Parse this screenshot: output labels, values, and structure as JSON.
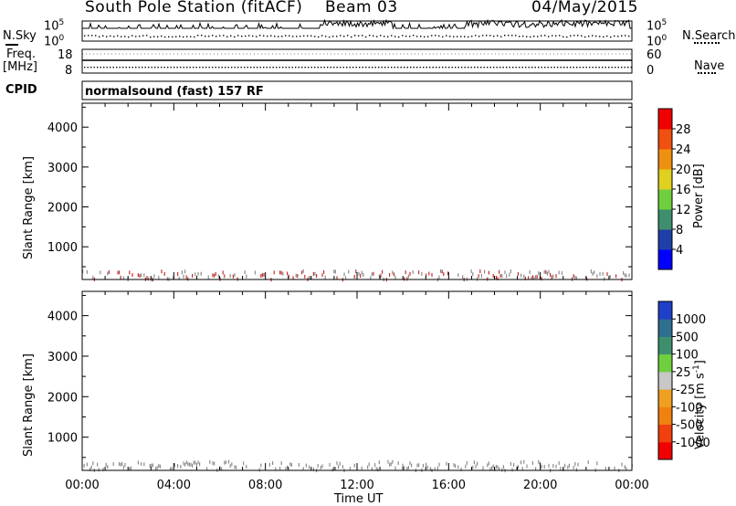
{
  "header": {
    "station": "South Pole Station (fitACF)",
    "beam": "Beam 03",
    "date": "04/May/2015"
  },
  "summary_panels": {
    "nsky_label": "N.Sky",
    "nsearch_label": "N.Search",
    "nsky_ticks": [
      "10^5",
      "10^0"
    ],
    "nsearch_ticks": [
      "10^5",
      "10^0"
    ],
    "freq_label": "Freq.",
    "freq_unit": "[MHz]",
    "freq_ticks": [
      "18",
      "8"
    ],
    "nave_label": "Nave",
    "nave_ticks": [
      "60",
      "0"
    ],
    "cpid_label": "CPID",
    "cpid_value": "normalsound (fast) 157 RF"
  },
  "chart_data": [
    {
      "type": "heatmap",
      "quantity": "Power",
      "ylabel": "Slant Range [km]",
      "xlabel": "Time UT",
      "x_ticks": [
        "00:00",
        "04:00",
        "08:00",
        "12:00",
        "16:00",
        "20:00",
        "00:00"
      ],
      "xlim_hours": [
        0,
        24
      ],
      "y_ticks": [
        "1000",
        "2000",
        "3000",
        "4000"
      ],
      "ylim_km": [
        180,
        4600
      ],
      "colorbar_label": "Power [dB]",
      "colorbar_ticks": [
        "4",
        "8",
        "12",
        "16",
        "20",
        "24",
        "28"
      ],
      "colorbar_range": [
        0,
        32
      ],
      "colors": [
        "#0000ff",
        "#1f3fa8",
        "#3f8f6f",
        "#6fcf3f",
        "#e0d020",
        "#f09010",
        "#f05010",
        "#f00000"
      ]
    },
    {
      "type": "heatmap",
      "quantity": "Velocity",
      "ylabel": "Slant Range [km]",
      "xlabel": "Time UT",
      "x_ticks": [
        "00:00",
        "04:00",
        "08:00",
        "12:00",
        "16:00",
        "20:00",
        "00:00"
      ],
      "xlim_hours": [
        0,
        24
      ],
      "y_ticks": [
        "1000",
        "2000",
        "3000",
        "4000"
      ],
      "ylim_km": [
        180,
        4600
      ],
      "colorbar_label": "Velocity [m s-1]",
      "colorbar_ticks": [
        "1000",
        "500",
        "100",
        "25",
        "-25",
        "-100",
        "-500",
        "-1000"
      ],
      "colors": [
        "#1f3fc8",
        "#2f6f8f",
        "#3f8f6f",
        "#6fcf3f",
        "#c8c8c8",
        "#f0a020",
        "#f08010",
        "#f04010",
        "#f00000"
      ]
    }
  ],
  "style": {
    "frame_color": "#000000",
    "ground_scatter_color": "#8c8c8c"
  }
}
